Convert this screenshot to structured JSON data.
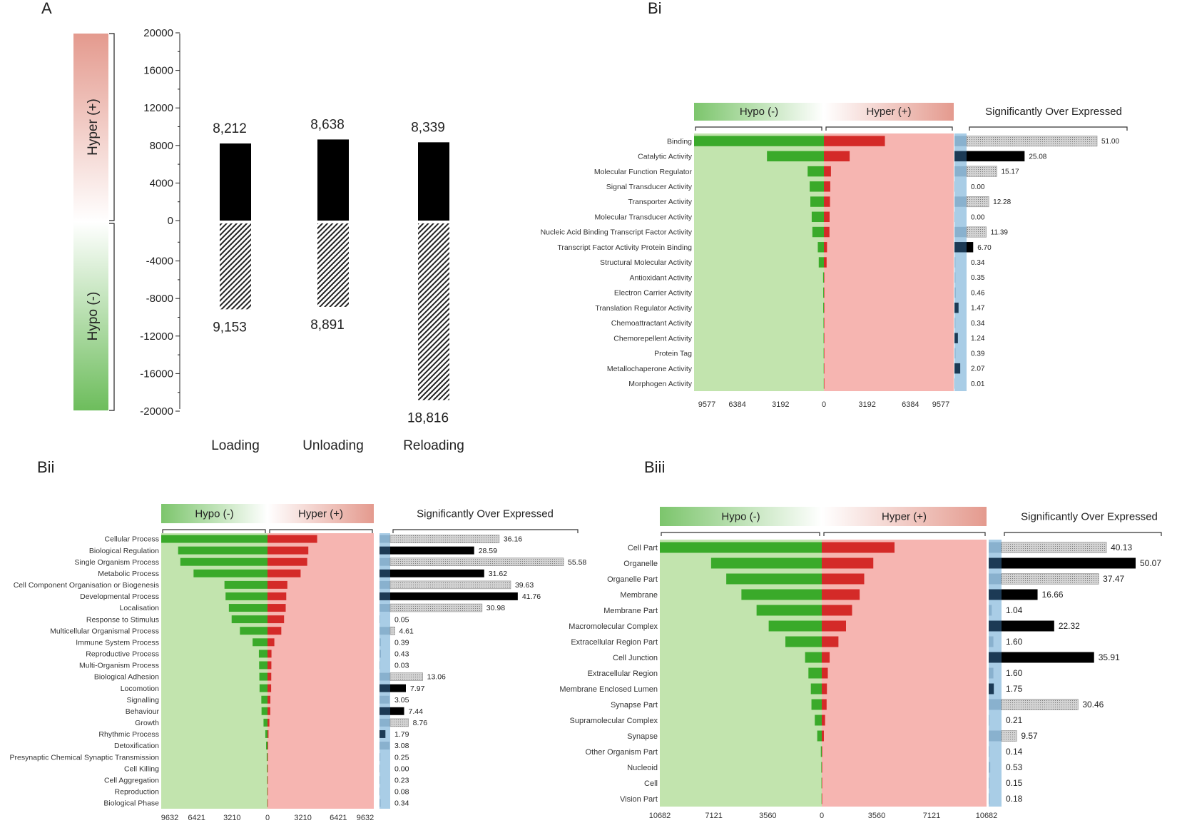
{
  "figure": {
    "panel_labels": [
      "A",
      "Bi",
      "Bii",
      "Biii"
    ],
    "sig_label": "Significantly Over Expressed"
  },
  "colors": {
    "green": "#3aaa2a",
    "red": "#d42a28",
    "green_bg": "#c2e4ae",
    "red_bg": "#f6b5b1",
    "black": "#000000",
    "gray_bar": "#d4d4d4",
    "blue_strip": "#a9cde6",
    "blue_dark": "#1c3a55"
  },
  "chart_data": [
    {
      "id": "A",
      "type": "bar",
      "title": "A",
      "categories": [
        "Loading",
        "Unloading",
        "Reloading"
      ],
      "series": [
        {
          "name": "Hyper (+)",
          "values": [
            8212,
            8638,
            8339
          ],
          "labels": [
            "8,212",
            "8,638",
            "8,339"
          ],
          "style": "solid-black"
        },
        {
          "name": "Hypo (-)",
          "values": [
            -9153,
            -8891,
            -18816
          ],
          "labels": [
            "9,153",
            "8,891",
            "18,816"
          ],
          "style": "hatched"
        }
      ],
      "ylim": [
        -20000,
        20000
      ],
      "yticks": [
        20000,
        16000,
        12000,
        8000,
        4000,
        0,
        -4000,
        -8000,
        -12000,
        -16000,
        -20000
      ],
      "side_labels": [
        "Hyper (+)",
        "Hypo (-)"
      ]
    },
    {
      "id": "Bi",
      "type": "bar",
      "title": "Bi",
      "header": {
        "hypo": "Hypo (-)",
        "hyper": "Hyper (+)",
        "sig": "Significantly Over Expressed"
      },
      "xlim": 9577,
      "xticks": [
        "9577",
        "6384",
        "3192",
        "0",
        "3192",
        "6384",
        "9577"
      ],
      "sig_max": 51,
      "categories": [
        "Binding",
        "Catalytic Activity",
        "Molecular Function Regulator",
        "Signal Transducer Activity",
        "Transporter Activity",
        "Molecular Transducer Activity",
        "Nucleic Acid Binding Transcript Factor Activity",
        "Transcript Factor Activity Protein Binding",
        "Structural Molecular Activity",
        "Antioxidant Activity",
        "Electron Carrier Activity",
        "Translation Regulator Activity",
        "Chemoattractant Activity",
        "Chemorepellent Activity",
        "Protein Tag",
        "Metallochaperone Activity",
        "Morphogen Activity"
      ],
      "hypo": [
        9577,
        4200,
        1200,
        1050,
        1000,
        900,
        850,
        450,
        380,
        60,
        50,
        50,
        30,
        25,
        20,
        15,
        10
      ],
      "hyper": [
        4500,
        1900,
        520,
        470,
        450,
        420,
        410,
        230,
        200,
        30,
        25,
        25,
        15,
        12,
        10,
        8,
        5
      ],
      "sig_values": [
        51.0,
        25.08,
        15.17,
        0.0,
        12.28,
        0.0,
        11.39,
        6.7,
        0.34,
        0.35,
        0.46,
        1.47,
        0.34,
        1.24,
        0.39,
        2.07,
        0.01
      ],
      "sig_labels": [
        "51.00",
        "25.08",
        "15.17",
        "0.00",
        "12.28",
        "0.00",
        "11.39",
        "6.70",
        "0.34",
        "0.35",
        "0.46",
        "1.47",
        "0.34",
        "1.24",
        "0.39",
        "2.07",
        "0.01"
      ],
      "sig_styles": [
        "gray",
        "black",
        "gray",
        "gray",
        "gray",
        "gray",
        "gray",
        "black",
        "gray",
        "gray",
        "gray",
        "black",
        "gray",
        "black",
        "gray",
        "black",
        "gray"
      ]
    },
    {
      "id": "Bii",
      "type": "bar",
      "title": "Bii",
      "header": {
        "hypo": "Hypo (-)",
        "hyper": "Hyper (+)",
        "sig": "Significantly Over Expressed"
      },
      "xlim": 9632,
      "xticks": [
        "9632",
        "6421",
        "3210",
        "0",
        "3210",
        "6421",
        "9632"
      ],
      "sig_max": 55.58,
      "categories": [
        "Cellular Process",
        "Biological Regulation",
        "Single Organism Process",
        "Metabolic Process",
        "Cell Component Organisation or Biogenesis",
        "Developmental Process",
        "Localisation",
        "Response to Stimulus",
        "Multicellular Organismal Process",
        "Immune System Process",
        "Reproductive Process",
        "Multi-Organism Process",
        "Biological Adhesion",
        "Locomotion",
        "Signalling",
        "Behaviour",
        "Growth",
        "Rhythmic Process",
        "Detoxification",
        "Presynaptic Chemical Synaptic Transmission",
        "Cell Killing",
        "Cell Aggregation",
        "Reproduction",
        "Biological Phase"
      ],
      "hypo": [
        9632,
        8100,
        7900,
        6700,
        3900,
        3800,
        3500,
        3250,
        2500,
        1350,
        780,
        760,
        740,
        720,
        560,
        540,
        360,
        200,
        130,
        70,
        50,
        35,
        25,
        20
      ],
      "hyper": [
        4500,
        3700,
        3600,
        3000,
        1800,
        1700,
        1650,
        1500,
        1250,
        620,
        360,
        350,
        340,
        330,
        260,
        250,
        170,
        90,
        60,
        35,
        25,
        18,
        12,
        10
      ],
      "sig_values": [
        36.16,
        28.59,
        55.58,
        31.62,
        39.63,
        41.76,
        30.98,
        0.05,
        4.61,
        0.39,
        0.43,
        0.03,
        13.06,
        7.97,
        3.05,
        7.44,
        8.76,
        1.79,
        3.08,
        0.25,
        0.0,
        0.23,
        0.08,
        0.34
      ],
      "sig_labels": [
        "36.16",
        "28.59",
        "55.58",
        "31.62",
        "39.63",
        "41.76",
        "30.98",
        "0.05",
        "4.61",
        "0.39",
        "0.43",
        "0.03",
        "13.06",
        "7.97",
        "3.05",
        "7.44",
        "8.76",
        "1.79",
        "3.08",
        "0.25",
        "0.00",
        "0.23",
        "0.08",
        "0.34"
      ],
      "sig_styles": [
        "gray",
        "black",
        "gray",
        "black",
        "gray",
        "black",
        "gray",
        "gray",
        "gray",
        "gray",
        "gray",
        "gray",
        "gray",
        "black",
        "gray",
        "black",
        "gray",
        "black",
        "gray",
        "gray",
        "gray",
        "gray",
        "gray",
        "gray"
      ]
    },
    {
      "id": "Biii",
      "type": "bar",
      "title": "Biii",
      "header": {
        "hypo": "Hypo (-)",
        "hyper": "Hyper (+)",
        "sig": "Significantly Over Expressed"
      },
      "xlim": 10682,
      "xticks": [
        "10682",
        "7121",
        "3560",
        "0",
        "3560",
        "7121",
        "10682"
      ],
      "sig_max": 50.07,
      "categories": [
        "Cell Part",
        "Organelle",
        "Organelle Part",
        "Membrane",
        "Membrane Part",
        "Macromolecular Complex",
        "Extracellular Region Part",
        "Cell Junction",
        "Extracellular Region",
        "Membrane Enclosed Lumen",
        "Synapse Part",
        "Supramolecular Complex",
        "Synapse",
        "Other Organism Part",
        "Nucleoid",
        "Cell",
        "Vision Part"
      ],
      "hypo": [
        10682,
        7300,
        6300,
        5300,
        4300,
        3500,
        2400,
        1100,
        880,
        720,
        680,
        460,
        300,
        60,
        30,
        20,
        15
      ],
      "hyper": [
        4800,
        3400,
        2800,
        2500,
        2000,
        1600,
        1100,
        520,
        400,
        340,
        320,
        220,
        140,
        30,
        15,
        10,
        8
      ],
      "sig_values": [
        40.13,
        50.07,
        37.47,
        16.66,
        1.04,
        22.32,
        1.6,
        35.91,
        1.6,
        1.75,
        30.46,
        0.21,
        9.57,
        0.14,
        0.53,
        0.15,
        0.18
      ],
      "sig_labels": [
        "40.13",
        "50.07",
        "37.47",
        "16.66",
        "1.04",
        "22.32",
        "1.60",
        "35.91",
        "1.60",
        "1.75",
        "30.46",
        "0.21",
        "9.57",
        "0.14",
        "0.53",
        "0.15",
        "0.18"
      ],
      "sig_styles": [
        "gray",
        "black",
        "gray",
        "black",
        "gray",
        "black",
        "gray",
        "black",
        "gray",
        "black",
        "gray",
        "gray",
        "gray",
        "gray",
        "gray",
        "gray",
        "gray"
      ]
    }
  ]
}
